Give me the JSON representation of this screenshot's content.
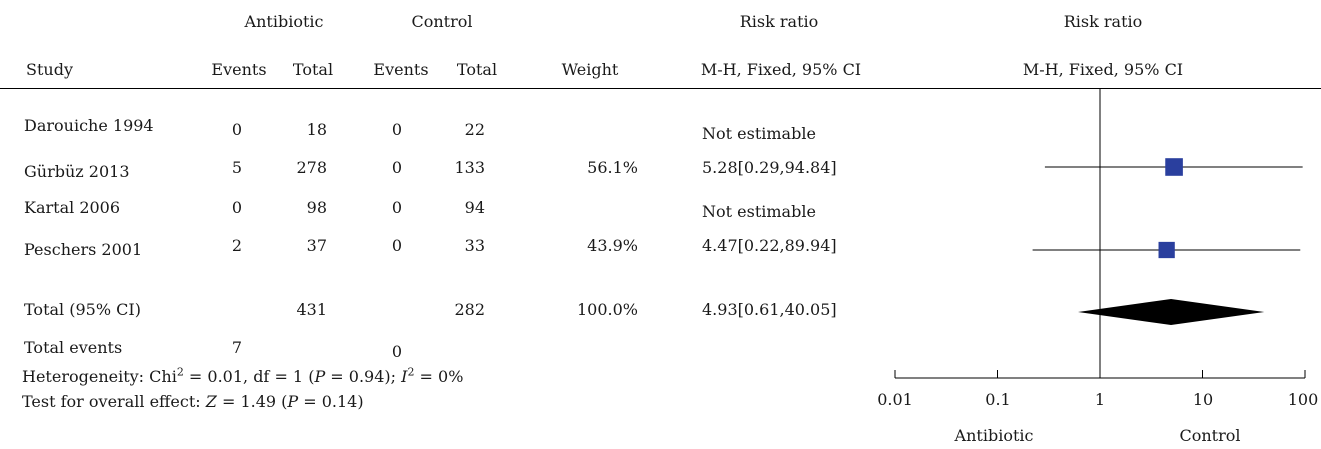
{
  "header": {
    "antibiotic": "Antibiotic",
    "control": "Control",
    "risk_ratio_text": "Risk ratio",
    "risk_ratio_plot": "Risk ratio",
    "study": "Study",
    "events1": "Events",
    "total1": "Total",
    "events2": "Events",
    "total2": "Total",
    "weight": "Weight",
    "method_text": "M-H, Fixed, 95% CI",
    "method_plot": "M-H, Fixed, 95% CI"
  },
  "rows": [
    {
      "study": "Darouiche 1994",
      "events_a": "0",
      "total_a": "18",
      "events_c": "0",
      "total_c": "22",
      "weight": "",
      "ci": "Not estimable"
    },
    {
      "study": "Gürbüz 2013",
      "events_a": "5",
      "total_a": "278",
      "events_c": "0",
      "total_c": "133",
      "weight": "56.1%",
      "ci": "5.28[0.29,94.84]"
    },
    {
      "study": "Kartal 2006",
      "events_a": "0",
      "total_a": "98",
      "events_c": "0",
      "total_c": "94",
      "weight": "",
      "ci": "Not estimable"
    },
    {
      "study": "Peschers 2001",
      "events_a": "2",
      "total_a": "37",
      "events_c": "0",
      "total_c": "33",
      "weight": "43.9%",
      "ci": "4.47[0.22,89.94]"
    }
  ],
  "total": {
    "label": "Total (95% CI)",
    "total_a": "431",
    "total_c": "282",
    "weight": "100.0%",
    "ci": "4.93[0.61,40.05]"
  },
  "total_events": {
    "label": "Total events",
    "events_a": "7",
    "events_c": "0"
  },
  "heterogeneity": {
    "prefix": "Heterogeneity: Chi",
    "sup1": "2",
    "mid": " = 0.01, df = 1 (",
    "p": "P",
    "mid2": " = 0.94); ",
    "i": "I",
    "sup2": "2",
    "end": " = 0%"
  },
  "overall_effect": {
    "prefix": "Test for overall effect: ",
    "z": "Z",
    "mid": " = 1.49 (",
    "p": "P",
    "end": " = 0.14)"
  },
  "axis": {
    "tick_labels": [
      "0.01",
      "0.1",
      "1",
      "10",
      "100"
    ],
    "favours_left": "Antibiotic",
    "favours_right": "Control"
  },
  "colors": {
    "marker": "#2a3f9e",
    "diamond": "#000000"
  },
  "chart_data": {
    "type": "forest",
    "scale": "log",
    "xlim": [
      0.01,
      100
    ],
    "ticks": [
      0.01,
      0.1,
      1,
      10,
      100
    ],
    "estimates": [
      {
        "study": "Gürbüz 2013",
        "rr": 5.28,
        "lo": 0.29,
        "hi": 94.84,
        "weight": 56.1
      },
      {
        "study": "Peschers 2001",
        "rr": 4.47,
        "lo": 0.22,
        "hi": 89.94,
        "weight": 43.9
      }
    ],
    "pooled": {
      "rr": 4.93,
      "lo": 0.61,
      "hi": 40.05
    }
  }
}
